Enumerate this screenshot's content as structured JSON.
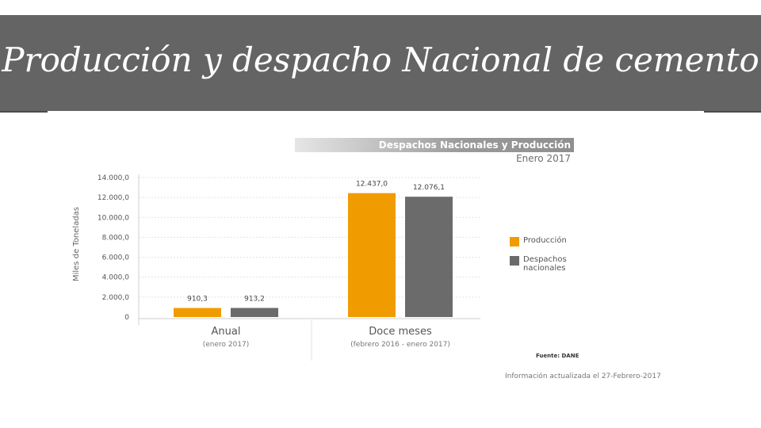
{
  "slide": {
    "title": "Producción y despacho Nacional de cemento"
  },
  "figure": {
    "header_title": "Despachos Nacionales y Producción",
    "header_subtitle": "Enero 2017",
    "source": "Fuente: DANE",
    "updated": "Información actualizada el 27-Febrero-2017"
  },
  "chart_data": {
    "type": "bar",
    "title": "Despachos Nacionales y Producción",
    "subtitle": "Enero 2017",
    "categories": [
      "Anual",
      "Doce meses"
    ],
    "category_subtitles": [
      "(enero 2017)",
      "(febrero 2016 - enero 2017)"
    ],
    "series": [
      {
        "name": "Producción",
        "values": [
          910.3,
          12437.0
        ],
        "labels": [
          "910,3",
          "12.437,0"
        ],
        "color": "#f09c00"
      },
      {
        "name": "Despachos nacionales",
        "values": [
          913.2,
          12076.1
        ],
        "labels": [
          "913,2",
          "12.076,1"
        ],
        "color": "#6b6b6b"
      }
    ],
    "ylabel": "Miles de Toneladas",
    "xlabel": "",
    "ylim": [
      0,
      14000
    ],
    "yticks": [
      0,
      2000,
      4000,
      6000,
      8000,
      10000,
      12000,
      14000
    ],
    "ytick_labels": [
      "0",
      "2.000,0",
      "4.000,0",
      "6.000,0",
      "8.000,0",
      "10.000,0",
      "12.000,0",
      "14.000,0"
    ],
    "grid": true,
    "legend": "right"
  }
}
